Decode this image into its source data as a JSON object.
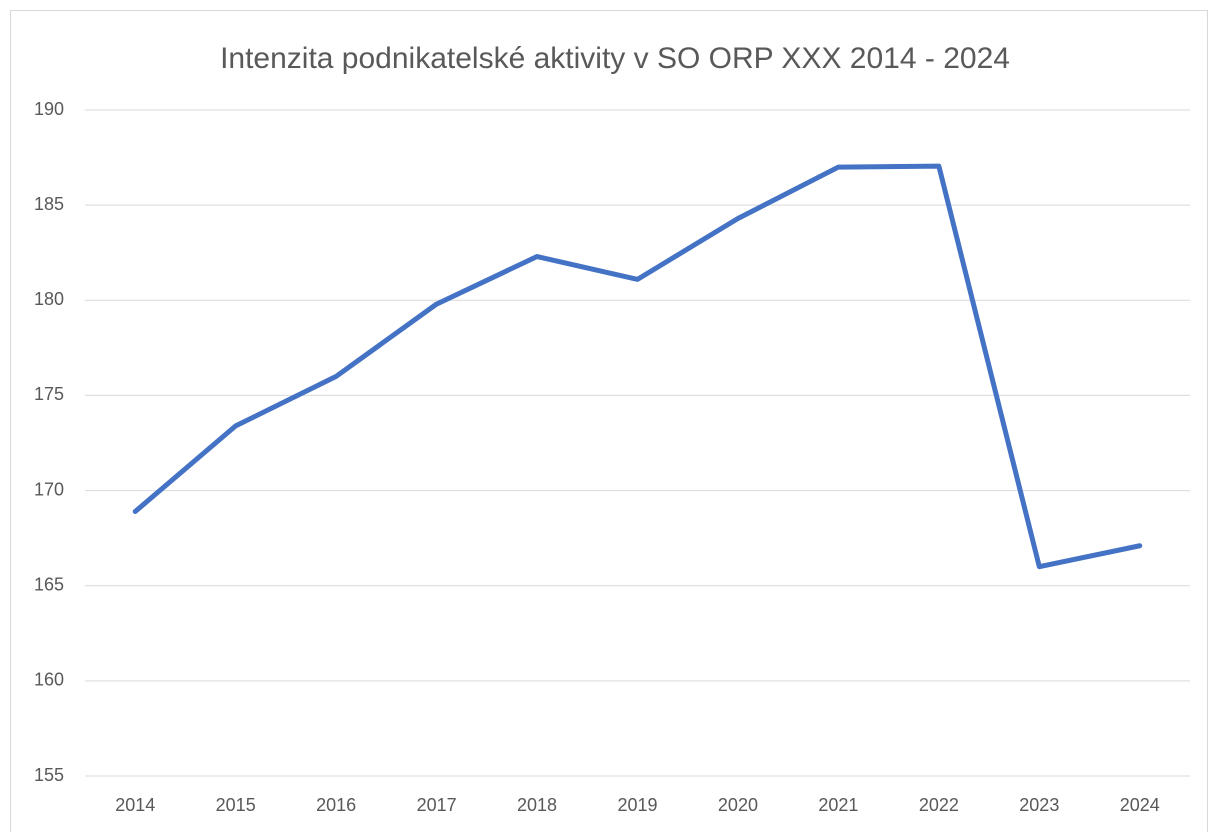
{
  "chart_data": {
    "type": "line",
    "title": "Intenzita podnikatelské aktivity v SO ORP XXX 2014 - 2024",
    "categories": [
      "2014",
      "2015",
      "2016",
      "2017",
      "2018",
      "2019",
      "2020",
      "2021",
      "2022",
      "2023",
      "2024"
    ],
    "values": [
      168.9,
      173.4,
      176.0,
      179.8,
      182.3,
      181.1,
      184.3,
      187.0,
      187.05,
      166.0,
      167.1
    ],
    "color": "#4472c4",
    "ylim": [
      155,
      190
    ],
    "yticks": [
      155,
      160,
      165,
      170,
      175,
      180,
      185,
      190
    ],
    "grid": true
  }
}
